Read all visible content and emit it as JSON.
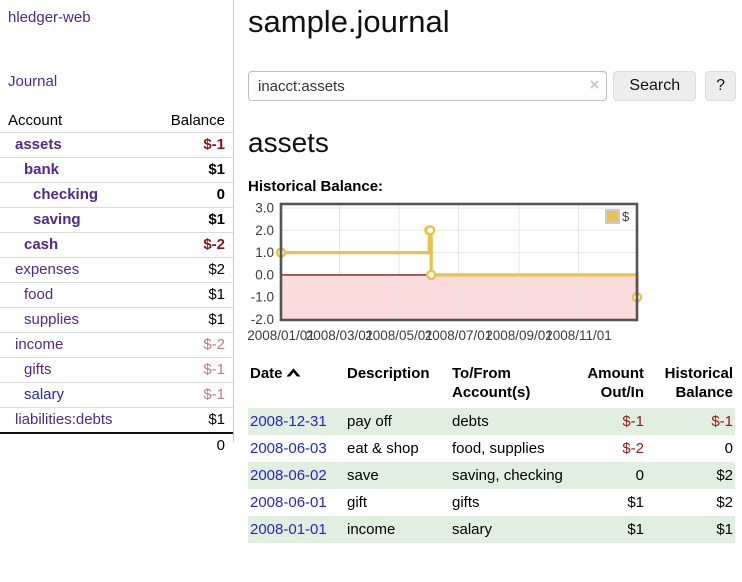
{
  "sidebar": {
    "brand": "hledger-web",
    "journal_link": "Journal",
    "accounts": {
      "headers": {
        "account": "Account",
        "balance": "Balance"
      },
      "rows": [
        {
          "name": "assets",
          "depth": 1,
          "bold": true,
          "balance": "$-1",
          "balance_class": "neg-strong"
        },
        {
          "name": "bank",
          "depth": 2,
          "bold": true,
          "balance": "$1",
          "balance_class": "pos"
        },
        {
          "name": "checking",
          "depth": 3,
          "bold": true,
          "balance": "0",
          "balance_class": "pos"
        },
        {
          "name": "saving",
          "depth": 3,
          "bold": true,
          "balance": "$1",
          "balance_class": "pos"
        },
        {
          "name": "cash",
          "depth": 2,
          "bold": true,
          "balance": "$-2",
          "balance_class": "neg-strong"
        },
        {
          "name": "expenses",
          "depth": 1,
          "bold": false,
          "balance": "$2",
          "balance_class": "pos"
        },
        {
          "name": "food",
          "depth": 2,
          "bold": false,
          "balance": "$1",
          "balance_class": "pos"
        },
        {
          "name": "supplies",
          "depth": 2,
          "bold": false,
          "balance": "$1",
          "balance_class": "pos"
        },
        {
          "name": "income",
          "depth": 1,
          "bold": false,
          "balance": "$-2",
          "balance_class": "neg-dim"
        },
        {
          "name": "gifts",
          "depth": 2,
          "bold": false,
          "balance": "$-1",
          "balance_class": "neg-dim"
        },
        {
          "name": "salary",
          "depth": 2,
          "bold": false,
          "link": "blue",
          "balance": "$-1",
          "balance_class": "neg-dim"
        },
        {
          "name": "liabilities:debts",
          "depth": 1,
          "bold": false,
          "balance": "$1",
          "balance_class": "pos"
        }
      ],
      "total": "0"
    }
  },
  "page": {
    "title": "sample.journal",
    "account_heading": "assets",
    "chart_label": "Historical Balance:"
  },
  "search": {
    "query": "inacct:assets",
    "clear_icon": "×",
    "button": "Search",
    "help_button": "?"
  },
  "chart_data": {
    "type": "line",
    "step": true,
    "title": "Historical Balance",
    "series": [
      {
        "name": "$",
        "color": "#e8c24a",
        "points": [
          [
            "2008-01-01",
            1
          ],
          [
            "2008-06-01",
            2
          ],
          [
            "2008-06-02",
            2
          ],
          [
            "2008-06-03",
            0
          ],
          [
            "2008-12-31",
            -1
          ]
        ]
      }
    ],
    "xrange": [
      "2008-01-01",
      "2008-12-31"
    ],
    "ylim": [
      -2,
      3
    ],
    "ylim_draw": [
      -2.02,
      3.18
    ],
    "yticks": [
      3,
      2,
      1,
      0,
      -1,
      -2
    ],
    "ytick_labels": [
      "3.0",
      "2.0",
      "1.0",
      "0.0",
      "-1.0",
      "-2.0"
    ],
    "xtick_dates": [
      "2008-01-01",
      "2008-03-01",
      "2008-05-01",
      "2008-07-01",
      "2008-09-01",
      "2008-11-01"
    ],
    "xtick_labels": [
      "2008/01/01",
      "2008/03/01",
      "2008/05/01",
      "2008/07/01",
      "2008/09/01",
      "2008/11/01"
    ],
    "grid": true,
    "legend_position": "top-right",
    "negative_region_fill": "#fbdbdb",
    "zero_line_color": "#8c1616",
    "border_color": "#545454",
    "gridline_color": "#e5e5e5",
    "tick_label_color": "#3c3c3c"
  },
  "register": {
    "headers": {
      "date": "Date",
      "description": "Description",
      "accounts": "To/From Account(s)",
      "amount": "Amount Out/In",
      "balance": "Historical Balance"
    },
    "rows": [
      {
        "date": "2008-12-31",
        "description": "pay off",
        "accounts": "debts",
        "amount": "$-1",
        "balance": "$-1"
      },
      {
        "date": "2008-06-03",
        "description": "eat & shop",
        "accounts": "food, supplies",
        "amount": "$-2",
        "balance": "0"
      },
      {
        "date": "2008-06-02",
        "description": "save",
        "accounts": "saving, checking",
        "amount": "0",
        "balance": "$2"
      },
      {
        "date": "2008-06-01",
        "description": "gift",
        "accounts": "gifts",
        "amount": "$1",
        "balance": "$2"
      },
      {
        "date": "2008-01-01",
        "description": "income",
        "accounts": "salary",
        "amount": "$1",
        "balance": "$1"
      }
    ]
  }
}
